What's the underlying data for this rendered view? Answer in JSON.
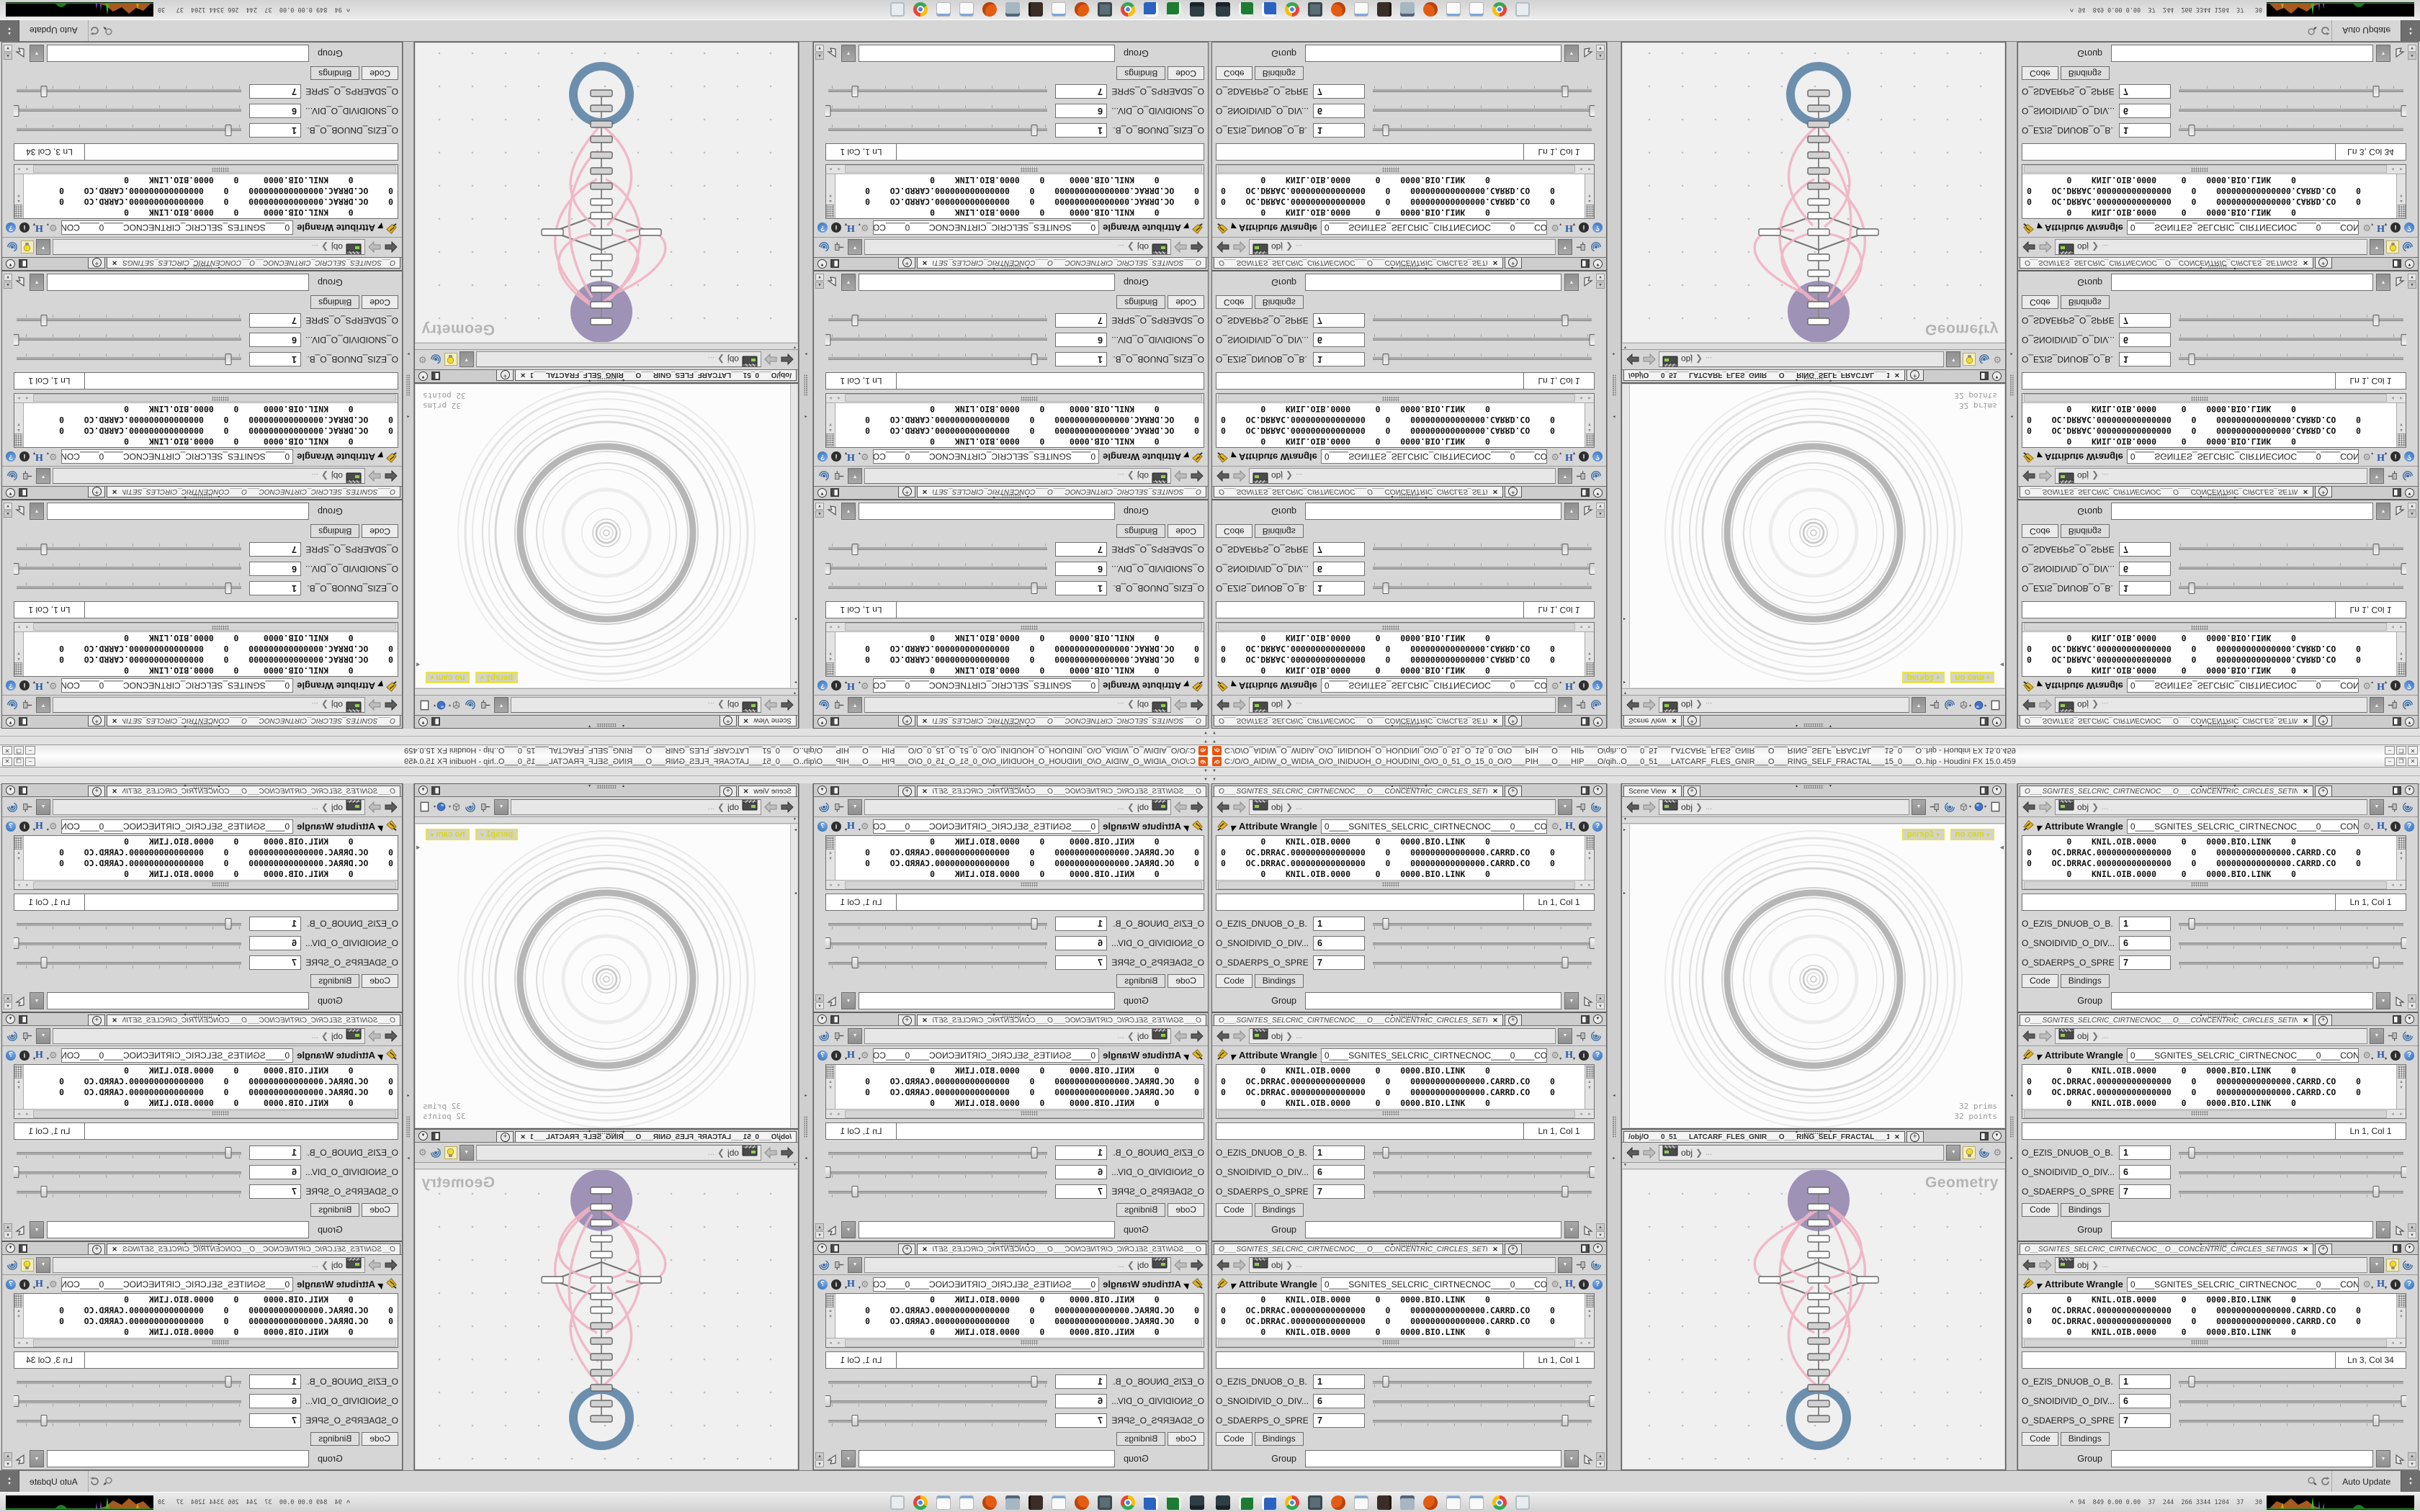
{
  "window": {
    "title": "C:/O/O_AIDIW_O_WIDIA_O/O_INIDUOH_O_HOUDINI_O/O_0_51_O_15_0_O/O___PIH___O___HIP___O/qih..O___0_51___LATCARF_FLES_GNIR___O___RING_SELF_FRACTAL___15_0___O..hip - Houdini FX 15.0.459",
    "minimize": "–",
    "maximize": "❐",
    "close": "✕"
  },
  "paneCommon": {
    "tab_close": "✕",
    "tab_add": "+",
    "context": "obj",
    "path_ellipsis": "...",
    "menu_arrow": "▼",
    "node_type": "Attribute Wrangle",
    "node_name": "0____SGNITES_SELCRIC_CIRTNECNOC____0____CONCENT",
    "code_lines": [
      "        0    KNIL.OIB.0000     0    0000.BIO.LINK    0",
      "0    OC.DRRAC.000000000000000    0    000000000000000.CARRD.CO    0",
      "0    OC.DRRAC.000000000000000    0    000000000000000.CARRD.CO    0",
      "        0    KNIL.OIB.0000     0    0000.BIO.LINK    0"
    ],
    "params": [
      {
        "label": "O_EZIS_DNUOB_O_B...",
        "value": "1",
        "slider_pct": 7
      },
      {
        "label": "O_SNOIDIVID_O_DIV...",
        "value": "6",
        "slider_pct": 99
      },
      {
        "label": "O_SDAERPS_O_SPRE...",
        "value": "7",
        "slider_pct": 87
      }
    ],
    "tab_code": "Code",
    "tab_bindings": "Bindings",
    "group_label": "Group"
  },
  "paramPanes": [
    {
      "tab_label": "O___SGNITES_SELCRIC_CIRTNECNOC___O___CONCENTRIC_CIRCLES_SETINGS___O",
      "lncol": "Ln 1, Col 1",
      "bulb": false
    },
    {
      "tab_label": "O___SGNITES_SELCRIC_CIRTNECNOC___O___CONCENTRIC_CIRCLES_SETINGS___O",
      "lncol": "Ln 1, Col 1",
      "bulb": false
    },
    {
      "tab_label": "O___SGNITES_SELCRIC_CIRTNECNOC___O___CONCENTRIC_CIRCLES_SETINGS___O",
      "lncol": "Ln 1, Col 1",
      "bulb": false
    },
    {
      "tab_label": "O___SGNITES_SELCRIC_CIRTNECNOC___O___CONCENTRIC_CIRCLES_SETINGS___O",
      "lncol": "Ln 1, Col 1",
      "bulb": false
    },
    {
      "tab_label": "O___SGNITES_SELCRIC_CIRTNECNOC___O___CONCENTRIC_CIRCLES_SETINGS___O",
      "lncol": "Ln 1, Col 1",
      "bulb": false
    },
    {
      "tab_label": "O__SGNITES_SELCRIC_CIRTNECNOC__O__CONCENTRIC_CIRCLES_SETINGS_..",
      "lncol": "Ln 3, Col 34",
      "bulb": true
    }
  ],
  "sceneView": {
    "tab_label": "Scene View",
    "camera_label": "persp1",
    "cam_menu_label": "no cam",
    "stats_line1": "32  prims",
    "stats_line2": "32 points"
  },
  "network": {
    "tab_label": "/obj/O___0_51___LATCARF_FLES_GNIR___O___RING_SELF_FRACTAL___15_0_..",
    "context_label": "Geometry"
  },
  "statusBar": {
    "auto_update": "Auto Update"
  },
  "taskbar": {
    "icons": [
      "monitor-icon",
      "green-app-icon",
      "save-floppy-icon",
      "chrome-icon",
      "display-icon",
      "houdini-icon",
      "notepad-icon",
      "media-icon",
      "calculator-icon",
      "houdini-icon",
      "notepad-icon",
      "notepad-icon",
      "chrome-icon",
      "window-icon"
    ],
    "tray_expand": "^",
    "tray_stats": "94  849 0.00 0.00  37  244  266 3344 1204  37   30"
  }
}
